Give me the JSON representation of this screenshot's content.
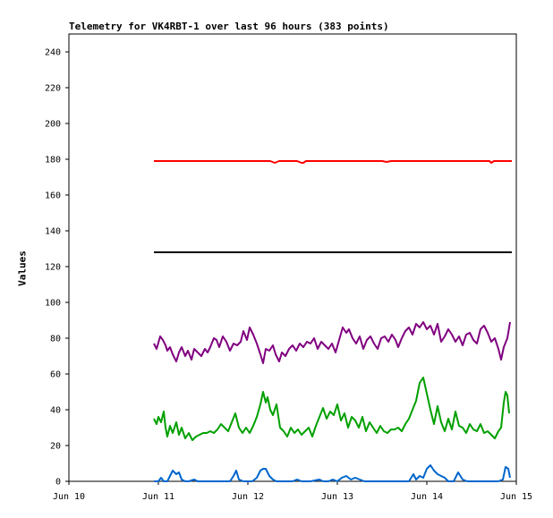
{
  "chart_data": {
    "type": "line",
    "title": "Telemetry for VK4RBT-1 over last 96 hours (383 points)",
    "xlabel": "",
    "ylabel": "Values",
    "ylim": [
      0,
      250
    ],
    "yticks": [
      0,
      20,
      40,
      60,
      80,
      100,
      120,
      140,
      160,
      180,
      200,
      220,
      240
    ],
    "xlim": [
      0,
      5
    ],
    "xticks": [
      {
        "x": 0,
        "label": "Jun 10"
      },
      {
        "x": 1,
        "label": "Jun 11"
      },
      {
        "x": 2,
        "label": "Jun 12"
      },
      {
        "x": 3,
        "label": "Jun 13"
      },
      {
        "x": 4,
        "label": "Jun 14"
      },
      {
        "x": 5,
        "label": "Jun 15"
      }
    ],
    "grid": false,
    "legend": "none",
    "series": [
      {
        "color": "#ff0000",
        "points": [
          [
            0.95,
            179
          ],
          [
            1.5,
            179
          ],
          [
            1.8,
            179
          ],
          [
            2.25,
            179
          ],
          [
            2.3,
            178
          ],
          [
            2.35,
            179
          ],
          [
            2.55,
            179
          ],
          [
            2.6,
            178
          ],
          [
            2.62,
            178
          ],
          [
            2.65,
            179
          ],
          [
            3.0,
            179
          ],
          [
            3.5,
            179
          ],
          [
            3.55,
            178.5
          ],
          [
            3.6,
            179
          ],
          [
            4.0,
            179
          ],
          [
            4.7,
            179
          ],
          [
            4.72,
            178
          ],
          [
            4.75,
            179
          ],
          [
            4.95,
            179
          ]
        ]
      },
      {
        "color": "#000000",
        "points": [
          [
            0.95,
            128
          ],
          [
            2.0,
            128
          ],
          [
            3.0,
            128
          ],
          [
            4.0,
            128
          ],
          [
            4.95,
            128
          ]
        ]
      },
      {
        "color": "#800080",
        "points": [
          [
            0.95,
            77
          ],
          [
            0.98,
            74
          ],
          [
            1.02,
            81
          ],
          [
            1.05,
            79
          ],
          [
            1.08,
            76
          ],
          [
            1.1,
            73
          ],
          [
            1.13,
            75
          ],
          [
            1.16,
            71
          ],
          [
            1.2,
            67
          ],
          [
            1.23,
            72
          ],
          [
            1.26,
            75
          ],
          [
            1.3,
            70
          ],
          [
            1.33,
            73
          ],
          [
            1.37,
            68
          ],
          [
            1.4,
            74
          ],
          [
            1.44,
            72
          ],
          [
            1.48,
            70
          ],
          [
            1.52,
            74
          ],
          [
            1.55,
            72
          ],
          [
            1.58,
            75
          ],
          [
            1.62,
            80
          ],
          [
            1.65,
            79
          ],
          [
            1.68,
            75
          ],
          [
            1.72,
            81
          ],
          [
            1.76,
            78
          ],
          [
            1.8,
            73
          ],
          [
            1.84,
            77
          ],
          [
            1.88,
            76
          ],
          [
            1.92,
            78
          ],
          [
            1.95,
            84
          ],
          [
            1.99,
            79
          ],
          [
            2.02,
            86
          ],
          [
            2.06,
            82
          ],
          [
            2.1,
            77
          ],
          [
            2.14,
            71
          ],
          [
            2.17,
            66
          ],
          [
            2.2,
            74
          ],
          [
            2.24,
            73
          ],
          [
            2.28,
            76
          ],
          [
            2.31,
            71
          ],
          [
            2.35,
            67
          ],
          [
            2.38,
            72
          ],
          [
            2.42,
            70
          ],
          [
            2.46,
            74
          ],
          [
            2.5,
            76
          ],
          [
            2.54,
            73
          ],
          [
            2.58,
            77
          ],
          [
            2.62,
            75
          ],
          [
            2.66,
            78
          ],
          [
            2.7,
            77
          ],
          [
            2.74,
            80
          ],
          [
            2.78,
            74
          ],
          [
            2.82,
            78
          ],
          [
            2.86,
            76
          ],
          [
            2.9,
            74
          ],
          [
            2.94,
            77
          ],
          [
            2.98,
            72
          ],
          [
            3.02,
            79
          ],
          [
            3.06,
            86
          ],
          [
            3.1,
            83
          ],
          [
            3.13,
            85
          ],
          [
            3.17,
            80
          ],
          [
            3.21,
            77
          ],
          [
            3.25,
            81
          ],
          [
            3.29,
            74
          ],
          [
            3.33,
            79
          ],
          [
            3.37,
            81
          ],
          [
            3.41,
            77
          ],
          [
            3.45,
            74
          ],
          [
            3.49,
            80
          ],
          [
            3.53,
            81
          ],
          [
            3.57,
            78
          ],
          [
            3.61,
            82
          ],
          [
            3.65,
            79
          ],
          [
            3.68,
            75
          ],
          [
            3.72,
            80
          ],
          [
            3.76,
            84
          ],
          [
            3.8,
            86
          ],
          [
            3.84,
            82
          ],
          [
            3.88,
            88
          ],
          [
            3.92,
            86
          ],
          [
            3.96,
            89
          ],
          [
            4.0,
            85
          ],
          [
            4.04,
            87
          ],
          [
            4.08,
            82
          ],
          [
            4.12,
            88
          ],
          [
            4.16,
            78
          ],
          [
            4.2,
            81
          ],
          [
            4.24,
            85
          ],
          [
            4.28,
            82
          ],
          [
            4.32,
            78
          ],
          [
            4.36,
            81
          ],
          [
            4.4,
            76
          ],
          [
            4.44,
            82
          ],
          [
            4.48,
            83
          ],
          [
            4.52,
            79
          ],
          [
            4.56,
            77
          ],
          [
            4.6,
            85
          ],
          [
            4.64,
            87
          ],
          [
            4.68,
            83
          ],
          [
            4.72,
            78
          ],
          [
            4.76,
            80
          ],
          [
            4.8,
            74
          ],
          [
            4.83,
            68
          ],
          [
            4.86,
            75
          ],
          [
            4.9,
            80
          ],
          [
            4.93,
            89
          ]
        ]
      },
      {
        "color": "#00a000",
        "points": [
          [
            0.95,
            35
          ],
          [
            0.98,
            32
          ],
          [
            1.0,
            36
          ],
          [
            1.03,
            33
          ],
          [
            1.06,
            39
          ],
          [
            1.08,
            30
          ],
          [
            1.1,
            25
          ],
          [
            1.13,
            31
          ],
          [
            1.16,
            27
          ],
          [
            1.2,
            33
          ],
          [
            1.23,
            26
          ],
          [
            1.26,
            30
          ],
          [
            1.3,
            24
          ],
          [
            1.34,
            27
          ],
          [
            1.38,
            23
          ],
          [
            1.42,
            25
          ],
          [
            1.46,
            26
          ],
          [
            1.5,
            27
          ],
          [
            1.54,
            27
          ],
          [
            1.58,
            28
          ],
          [
            1.62,
            27
          ],
          [
            1.66,
            29
          ],
          [
            1.7,
            32
          ],
          [
            1.74,
            30
          ],
          [
            1.78,
            28
          ],
          [
            1.82,
            33
          ],
          [
            1.86,
            38
          ],
          [
            1.9,
            30
          ],
          [
            1.94,
            27
          ],
          [
            1.98,
            30
          ],
          [
            2.02,
            27
          ],
          [
            2.06,
            31
          ],
          [
            2.1,
            36
          ],
          [
            2.14,
            43
          ],
          [
            2.17,
            50
          ],
          [
            2.2,
            44
          ],
          [
            2.22,
            47
          ],
          [
            2.25,
            40
          ],
          [
            2.28,
            37
          ],
          [
            2.32,
            43
          ],
          [
            2.36,
            30
          ],
          [
            2.4,
            28
          ],
          [
            2.44,
            25
          ],
          [
            2.48,
            30
          ],
          [
            2.52,
            27
          ],
          [
            2.56,
            29
          ],
          [
            2.6,
            26
          ],
          [
            2.64,
            28
          ],
          [
            2.68,
            30
          ],
          [
            2.72,
            25
          ],
          [
            2.76,
            31
          ],
          [
            2.8,
            36
          ],
          [
            2.84,
            41
          ],
          [
            2.88,
            35
          ],
          [
            2.92,
            39
          ],
          [
            2.96,
            37
          ],
          [
            3.0,
            43
          ],
          [
            3.04,
            34
          ],
          [
            3.08,
            38
          ],
          [
            3.12,
            30
          ],
          [
            3.16,
            36
          ],
          [
            3.2,
            34
          ],
          [
            3.24,
            30
          ],
          [
            3.28,
            36
          ],
          [
            3.32,
            28
          ],
          [
            3.36,
            33
          ],
          [
            3.4,
            30
          ],
          [
            3.44,
            27
          ],
          [
            3.48,
            31
          ],
          [
            3.52,
            28
          ],
          [
            3.56,
            27
          ],
          [
            3.6,
            29
          ],
          [
            3.64,
            29
          ],
          [
            3.68,
            30
          ],
          [
            3.72,
            28
          ],
          [
            3.76,
            32
          ],
          [
            3.8,
            35
          ],
          [
            3.84,
            40
          ],
          [
            3.88,
            45
          ],
          [
            3.92,
            55
          ],
          [
            3.96,
            58
          ],
          [
            4.0,
            49
          ],
          [
            4.04,
            40
          ],
          [
            4.08,
            32
          ],
          [
            4.12,
            42
          ],
          [
            4.16,
            33
          ],
          [
            4.2,
            28
          ],
          [
            4.24,
            35
          ],
          [
            4.28,
            29
          ],
          [
            4.32,
            39
          ],
          [
            4.36,
            31
          ],
          [
            4.4,
            30
          ],
          [
            4.44,
            27
          ],
          [
            4.48,
            32
          ],
          [
            4.52,
            29
          ],
          [
            4.56,
            28
          ],
          [
            4.6,
            32
          ],
          [
            4.64,
            27
          ],
          [
            4.68,
            28
          ],
          [
            4.72,
            26
          ],
          [
            4.76,
            24
          ],
          [
            4.8,
            28
          ],
          [
            4.83,
            30
          ],
          [
            4.86,
            44
          ],
          [
            4.88,
            50
          ],
          [
            4.9,
            48
          ],
          [
            4.92,
            38
          ]
        ]
      },
      {
        "color": "#0066cc",
        "points": [
          [
            0.95,
            0
          ],
          [
            1.0,
            0
          ],
          [
            1.03,
            2
          ],
          [
            1.06,
            0
          ],
          [
            1.1,
            0
          ],
          [
            1.13,
            3
          ],
          [
            1.16,
            6
          ],
          [
            1.2,
            4
          ],
          [
            1.23,
            5
          ],
          [
            1.26,
            1
          ],
          [
            1.3,
            0
          ],
          [
            1.34,
            0
          ],
          [
            1.4,
            1
          ],
          [
            1.44,
            0
          ],
          [
            1.5,
            0
          ],
          [
            1.6,
            0
          ],
          [
            1.7,
            0
          ],
          [
            1.8,
            0
          ],
          [
            1.84,
            3
          ],
          [
            1.87,
            6
          ],
          [
            1.9,
            1
          ],
          [
            1.95,
            0
          ],
          [
            2.0,
            0
          ],
          [
            2.05,
            0
          ],
          [
            2.1,
            2
          ],
          [
            2.14,
            6
          ],
          [
            2.17,
            7
          ],
          [
            2.2,
            7
          ],
          [
            2.24,
            3
          ],
          [
            2.28,
            1
          ],
          [
            2.32,
            0
          ],
          [
            2.4,
            0
          ],
          [
            2.5,
            0
          ],
          [
            2.55,
            1
          ],
          [
            2.6,
            0
          ],
          [
            2.7,
            0
          ],
          [
            2.8,
            1
          ],
          [
            2.84,
            0
          ],
          [
            2.9,
            0
          ],
          [
            2.95,
            1
          ],
          [
            3.0,
            0
          ],
          [
            3.05,
            2
          ],
          [
            3.1,
            3
          ],
          [
            3.15,
            1
          ],
          [
            3.2,
            2
          ],
          [
            3.25,
            1
          ],
          [
            3.3,
            0
          ],
          [
            3.4,
            0
          ],
          [
            3.5,
            0
          ],
          [
            3.6,
            0
          ],
          [
            3.7,
            0
          ],
          [
            3.8,
            0
          ],
          [
            3.85,
            4
          ],
          [
            3.88,
            1
          ],
          [
            3.92,
            3
          ],
          [
            3.96,
            2
          ],
          [
            4.0,
            7
          ],
          [
            4.04,
            9
          ],
          [
            4.08,
            6
          ],
          [
            4.12,
            4
          ],
          [
            4.16,
            3
          ],
          [
            4.2,
            2
          ],
          [
            4.24,
            0
          ],
          [
            4.3,
            0
          ],
          [
            4.35,
            5
          ],
          [
            4.4,
            1
          ],
          [
            4.45,
            0
          ],
          [
            4.5,
            0
          ],
          [
            4.6,
            0
          ],
          [
            4.7,
            0
          ],
          [
            4.8,
            0
          ],
          [
            4.85,
            1
          ],
          [
            4.88,
            8
          ],
          [
            4.91,
            7
          ],
          [
            4.93,
            2
          ]
        ]
      }
    ]
  }
}
